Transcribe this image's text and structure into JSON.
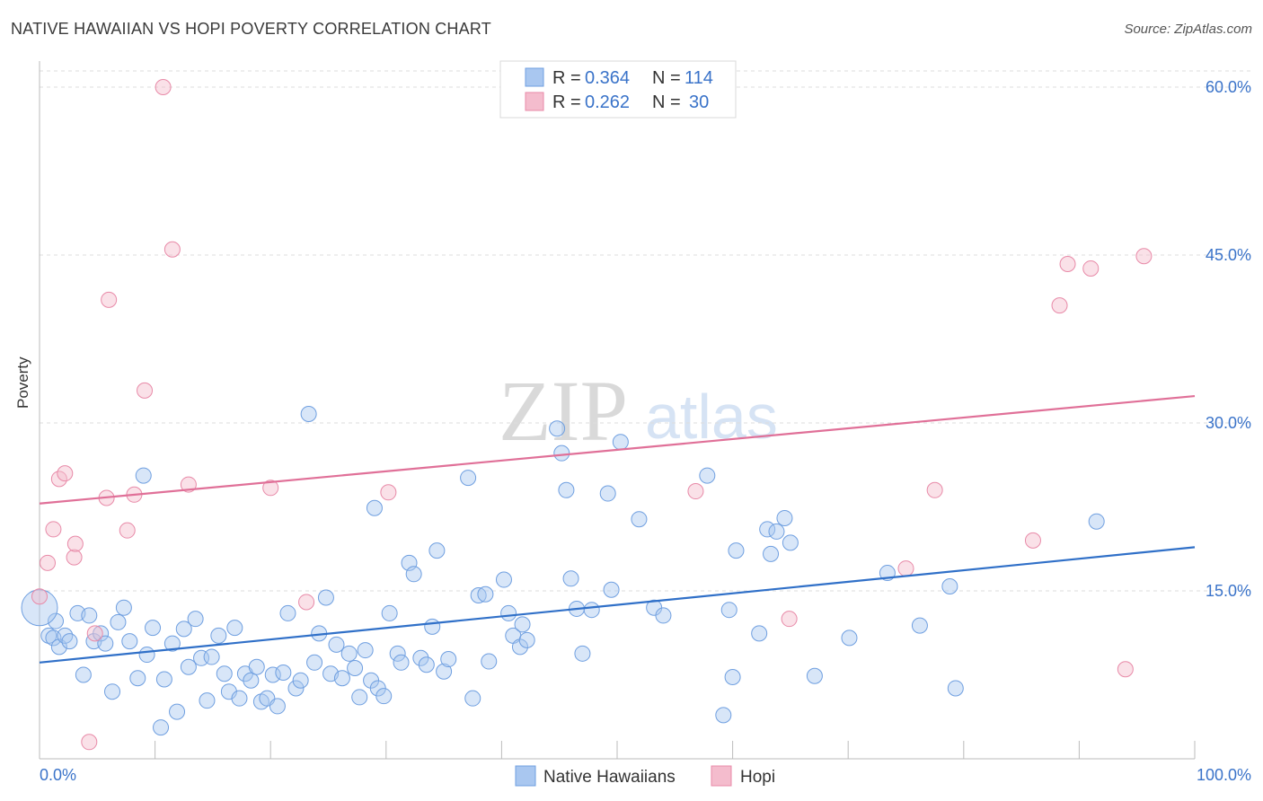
{
  "title": "NATIVE HAWAIIAN VS HOPI POVERTY CORRELATION CHART",
  "source": "Source: ZipAtlas.com",
  "watermark": {
    "zip": "ZIP",
    "atlas": "atlas"
  },
  "colors": {
    "blue": "#6f9fe0",
    "blue_fill": "#a9c7f0",
    "blue_line": "#3070c8",
    "pink": "#e88aa8",
    "pink_fill": "#f4bccd",
    "pink_line": "#e07098",
    "tick": "#3a73c9"
  },
  "legend": {
    "rows": [
      {
        "r_label": "R = ",
        "r_value": "0.364",
        "n_label": "N = ",
        "n_value": "114"
      },
      {
        "r_label": "R = ",
        "r_value": "0.262",
        "n_label": "N = ",
        "n_value": "30"
      }
    ]
  },
  "chart_data": {
    "type": "scatter",
    "title": "NATIVE HAWAIIAN VS HOPI POVERTY CORRELATION CHART",
    "xlabel": "",
    "ylabel": "Poverty",
    "xlim": [
      0,
      100
    ],
    "ylim": [
      0,
      60
    ],
    "x_tick_labels": [
      "0.0%",
      "100.0%"
    ],
    "y_ticks": [
      15,
      30,
      45,
      60
    ],
    "y_tick_labels": [
      "15.0%",
      "30.0%",
      "45.0%",
      "60.0%"
    ],
    "grid": true,
    "legend_position": "top-center",
    "series": [
      {
        "name": "Native Hawaiians",
        "r": 0.364,
        "n": 114,
        "trend": {
          "x": [
            0,
            100
          ],
          "y": [
            8.6,
            18.9
          ]
        },
        "points": [
          [
            0.8,
            11.0
          ],
          [
            1.2,
            10.8
          ],
          [
            1.7,
            10.0
          ],
          [
            2.2,
            11.0
          ],
          [
            2.6,
            10.5
          ],
          [
            3.3,
            13.0
          ],
          [
            3.8,
            7.5
          ],
          [
            4.3,
            12.8
          ],
          [
            4.7,
            10.5
          ],
          [
            5.3,
            11.2
          ],
          [
            5.7,
            10.3
          ],
          [
            6.3,
            6.0
          ],
          [
            6.8,
            12.2
          ],
          [
            7.3,
            13.5
          ],
          [
            7.8,
            10.5
          ],
          [
            8.5,
            7.2
          ],
          [
            9.0,
            25.3
          ],
          [
            9.3,
            9.3
          ],
          [
            9.8,
            11.7
          ],
          [
            10.5,
            2.8
          ],
          [
            10.8,
            7.1
          ],
          [
            11.5,
            10.3
          ],
          [
            11.9,
            4.2
          ],
          [
            12.5,
            11.6
          ],
          [
            12.9,
            8.2
          ],
          [
            13.5,
            12.5
          ],
          [
            14.0,
            9.0
          ],
          [
            14.5,
            5.2
          ],
          [
            14.9,
            9.1
          ],
          [
            15.5,
            11.0
          ],
          [
            16.0,
            7.6
          ],
          [
            16.4,
            6.0
          ],
          [
            16.9,
            11.7
          ],
          [
            17.3,
            5.4
          ],
          [
            17.8,
            7.6
          ],
          [
            18.3,
            7.0
          ],
          [
            18.8,
            8.2
          ],
          [
            19.2,
            5.1
          ],
          [
            19.7,
            5.4
          ],
          [
            20.2,
            7.5
          ],
          [
            20.6,
            4.7
          ],
          [
            21.1,
            7.7
          ],
          [
            21.5,
            13.0
          ],
          [
            22.2,
            6.3
          ],
          [
            22.6,
            7.0
          ],
          [
            23.3,
            30.8
          ],
          [
            23.8,
            8.6
          ],
          [
            24.2,
            11.2
          ],
          [
            24.8,
            14.4
          ],
          [
            25.2,
            7.6
          ],
          [
            25.7,
            10.2
          ],
          [
            26.2,
            7.2
          ],
          [
            26.8,
            9.4
          ],
          [
            27.3,
            8.1
          ],
          [
            27.7,
            5.5
          ],
          [
            28.2,
            9.7
          ],
          [
            28.7,
            7.0
          ],
          [
            29.3,
            6.3
          ],
          [
            29.8,
            5.6
          ],
          [
            30.3,
            13.0
          ],
          [
            31.0,
            9.4
          ],
          [
            31.3,
            8.6
          ],
          [
            32.0,
            17.5
          ],
          [
            32.4,
            16.5
          ],
          [
            33.0,
            9.0
          ],
          [
            33.5,
            8.4
          ],
          [
            34.0,
            11.8
          ],
          [
            34.4,
            18.6
          ],
          [
            35.0,
            7.8
          ],
          [
            35.4,
            8.9
          ],
          [
            37.1,
            25.1
          ],
          [
            37.5,
            5.4
          ],
          [
            38.0,
            14.6
          ],
          [
            38.6,
            14.7
          ],
          [
            40.2,
            16.0
          ],
          [
            40.6,
            13.0
          ],
          [
            41.0,
            11.0
          ],
          [
            41.6,
            10.0
          ],
          [
            42.2,
            10.6
          ],
          [
            38.9,
            8.7
          ],
          [
            44.8,
            29.5
          ],
          [
            45.2,
            27.3
          ],
          [
            45.6,
            24.0
          ],
          [
            46.0,
            16.1
          ],
          [
            46.5,
            13.4
          ],
          [
            47.0,
            9.4
          ],
          [
            47.8,
            13.3
          ],
          [
            29.0,
            22.4
          ],
          [
            49.2,
            23.7
          ],
          [
            49.5,
            15.1
          ],
          [
            50.3,
            28.3
          ],
          [
            51.9,
            21.4
          ],
          [
            53.2,
            13.5
          ],
          [
            54.0,
            12.8
          ],
          [
            57.8,
            25.3
          ],
          [
            59.2,
            3.9
          ],
          [
            59.7,
            13.3
          ],
          [
            60.0,
            7.3
          ],
          [
            60.3,
            18.6
          ],
          [
            62.3,
            11.2
          ],
          [
            63.0,
            20.5
          ],
          [
            63.3,
            18.3
          ],
          [
            63.8,
            20.3
          ],
          [
            64.5,
            21.5
          ],
          [
            65.0,
            19.3
          ],
          [
            67.1,
            7.4
          ],
          [
            70.1,
            10.8
          ],
          [
            73.4,
            16.6
          ],
          [
            76.2,
            11.9
          ],
          [
            78.8,
            15.4
          ],
          [
            79.3,
            6.3
          ],
          [
            91.5,
            21.2
          ],
          [
            1.4,
            12.3
          ],
          [
            41.8,
            12.0
          ]
        ]
      },
      {
        "name": "Hopi",
        "r": 0.262,
        "n": 30,
        "trend": {
          "x": [
            0,
            100
          ],
          "y": [
            22.8,
            32.4
          ]
        },
        "points": [
          [
            0.0,
            14.5
          ],
          [
            0.7,
            17.5
          ],
          [
            1.2,
            20.5
          ],
          [
            1.7,
            25.0
          ],
          [
            2.2,
            25.5
          ],
          [
            3.0,
            18.0
          ],
          [
            3.1,
            19.2
          ],
          [
            4.3,
            1.5
          ],
          [
            4.8,
            11.2
          ],
          [
            5.8,
            23.3
          ],
          [
            6.0,
            41.0
          ],
          [
            7.6,
            20.4
          ],
          [
            8.2,
            23.6
          ],
          [
            9.1,
            32.9
          ],
          [
            10.7,
            60.0
          ],
          [
            11.5,
            45.5
          ],
          [
            12.9,
            24.5
          ],
          [
            20.0,
            24.2
          ],
          [
            23.1,
            14.0
          ],
          [
            30.2,
            23.8
          ],
          [
            56.8,
            23.9
          ],
          [
            64.9,
            12.5
          ],
          [
            75.0,
            17.0
          ],
          [
            77.5,
            24.0
          ],
          [
            86.0,
            19.5
          ],
          [
            88.3,
            40.5
          ],
          [
            89.0,
            44.2
          ],
          [
            91.0,
            43.8
          ],
          [
            94.0,
            8.0
          ],
          [
            95.6,
            44.9
          ]
        ]
      }
    ]
  },
  "bottom_legend": [
    "Native Hawaiians",
    "Hopi"
  ]
}
